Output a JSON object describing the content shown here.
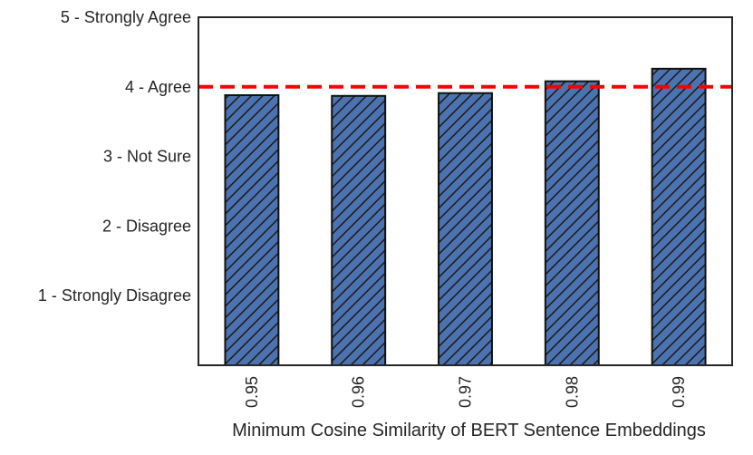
{
  "chart_data": {
    "type": "bar",
    "title": "",
    "xlabel": "Minimum Cosine Similarity of BERT Sentence Embeddings",
    "ylabel": "",
    "categories": [
      "0.95",
      "0.96",
      "0.97",
      "0.98",
      "0.99"
    ],
    "values": [
      3.88,
      3.87,
      3.91,
      4.08,
      4.26
    ],
    "ylim": [
      0,
      5
    ],
    "yticks": [
      {
        "value": 1,
        "label": "1 - Strongly Disagree"
      },
      {
        "value": 2,
        "label": "2 - Disagree"
      },
      {
        "value": 3,
        "label": "3 - Not Sure"
      },
      {
        "value": 4,
        "label": "4 - Agree"
      },
      {
        "value": 5,
        "label": "5 - Strongly Agree"
      }
    ],
    "reference_line": {
      "value": 4,
      "style": "dashed",
      "color": "#ff0000"
    },
    "bar_color": "#4c72b0",
    "bar_hatch": "diagonal-lines",
    "grid": false,
    "legend": "none"
  }
}
